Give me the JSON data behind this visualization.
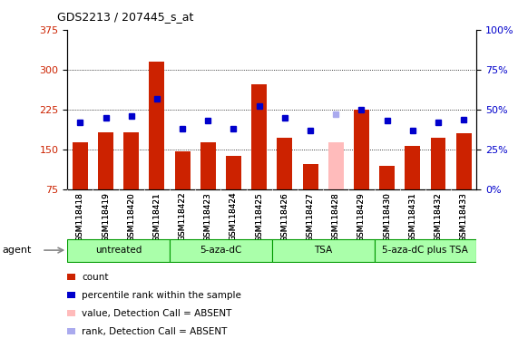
{
  "title": "GDS2213 / 207445_s_at",
  "samples": [
    "GSM118418",
    "GSM118419",
    "GSM118420",
    "GSM118421",
    "GSM118422",
    "GSM118423",
    "GSM118424",
    "GSM118425",
    "GSM118426",
    "GSM118427",
    "GSM118428",
    "GSM118429",
    "GSM118430",
    "GSM118431",
    "GSM118432",
    "GSM118433"
  ],
  "count_values": [
    163,
    183,
    183,
    315,
    147,
    163,
    138,
    273,
    172,
    123,
    163,
    225,
    120,
    157,
    173,
    180
  ],
  "rank_values_pct": [
    42,
    45,
    46,
    57,
    38,
    43,
    38,
    52,
    45,
    37,
    47,
    50,
    43,
    37,
    42,
    44
  ],
  "absent_count": [
    false,
    false,
    false,
    false,
    false,
    false,
    false,
    false,
    false,
    false,
    true,
    false,
    false,
    false,
    false,
    false
  ],
  "absent_rank": [
    false,
    false,
    false,
    false,
    false,
    false,
    false,
    false,
    false,
    false,
    true,
    false,
    false,
    false,
    false,
    false
  ],
  "groups": [
    {
      "label": "untreated",
      "start": 0,
      "end": 3
    },
    {
      "label": "5-aza-dC",
      "start": 4,
      "end": 7
    },
    {
      "label": "TSA",
      "start": 8,
      "end": 11
    },
    {
      "label": "5-aza-dC plus TSA",
      "start": 12,
      "end": 15
    }
  ],
  "ylim_left": [
    75,
    375
  ],
  "ylim_right": [
    0,
    100
  ],
  "yticks_left": [
    75,
    150,
    225,
    300,
    375
  ],
  "yticks_right": [
    0,
    25,
    50,
    75,
    100
  ],
  "bar_color_normal": "#cc2200",
  "bar_color_absent": "#ffbbbb",
  "dot_color_normal": "#0000cc",
  "dot_color_absent": "#aaaaee",
  "group_color": "#aaffaa",
  "group_border": "#009900",
  "agent_label": "agent",
  "legend_items": [
    {
      "color": "#cc2200",
      "label": "count"
    },
    {
      "color": "#0000cc",
      "label": "percentile rank within the sample"
    },
    {
      "color": "#ffbbbb",
      "label": "value, Detection Call = ABSENT"
    },
    {
      "color": "#aaaaee",
      "label": "rank, Detection Call = ABSENT"
    }
  ]
}
